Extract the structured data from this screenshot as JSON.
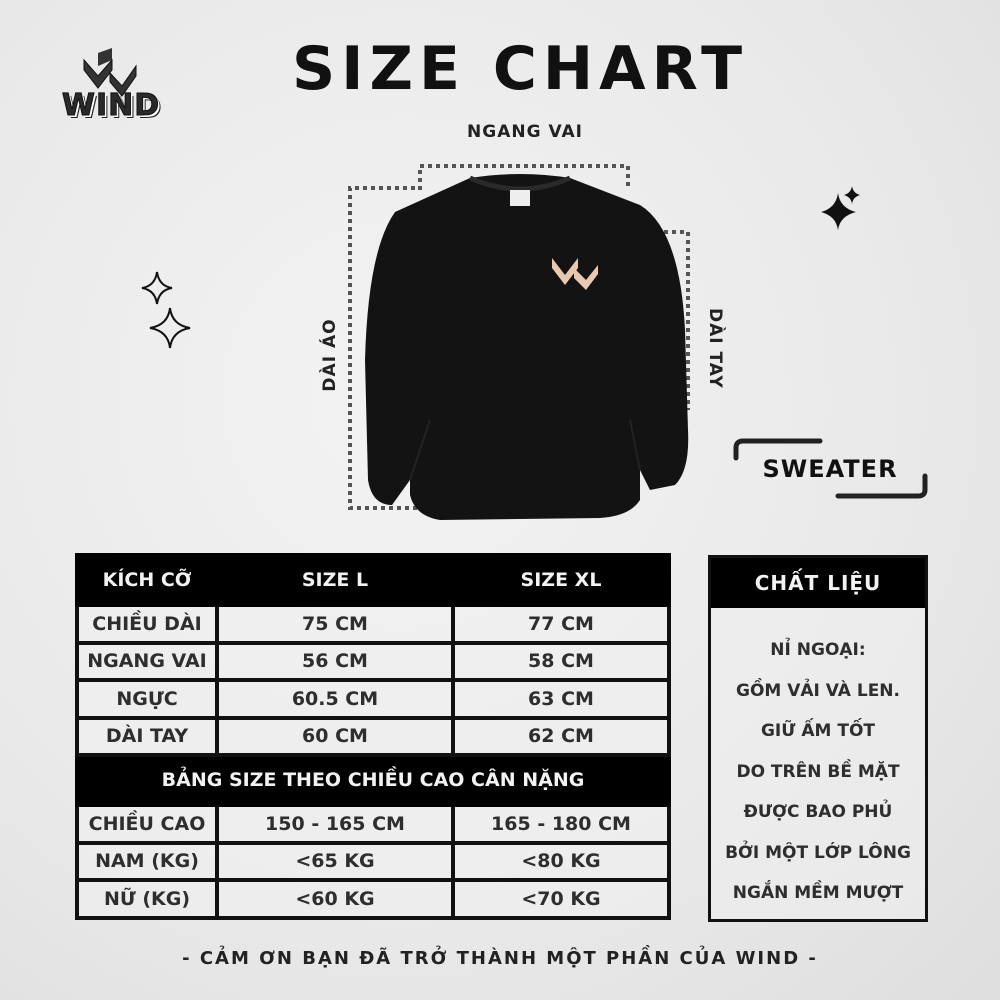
{
  "brand": {
    "name": "WIND"
  },
  "title": "SIZE CHART",
  "diagram": {
    "shoulder_label": "NGANG VAI",
    "length_label": "DÀI ÁO",
    "sleeve_label": "DÀI TAY",
    "product_tag": "SWEATER"
  },
  "size_table": {
    "headers": [
      "KÍCH CỠ",
      "SIZE L",
      "SIZE XL"
    ],
    "rows": [
      [
        "CHIỀU DÀI",
        "75 CM",
        "77 CM"
      ],
      [
        "NGANG VAI",
        "56 CM",
        "58 CM"
      ],
      [
        "NGỰC",
        "60.5 CM",
        "63 CM"
      ],
      [
        "DÀI TAY",
        "60 CM",
        "62 CM"
      ]
    ],
    "section_title": "BẢNG SIZE THEO CHIỀU CAO CÂN NẶNG",
    "rows2": [
      [
        "CHIỀU CAO",
        "150 - 165 CM",
        "165 - 180 CM"
      ],
      [
        "NAM (KG)",
        "<65 KG",
        "<80 KG"
      ],
      [
        "NỮ (KG)",
        "<60 KG",
        "<70 KG"
      ]
    ]
  },
  "material": {
    "title": "CHẤT LIỆU",
    "lines": [
      "NỈ NGOẠI:",
      "GỒM VẢI VÀ LEN.",
      "GIỮ ẤM TỐT",
      "DO TRÊN BỀ MẶT",
      "ĐƯỢC BAO PHỦ",
      "BỞI MỘT LỚP LÔNG",
      "NGẮN MỀM MƯỢT"
    ]
  },
  "footer": "- CẢM ƠN BẠN ĐÃ TRỞ THÀNH MỘT PHẦN CỦA WIND -",
  "colors": {
    "dark": "#111111",
    "background": "#ebebeb",
    "logo_accent": "#e8c9b0"
  }
}
